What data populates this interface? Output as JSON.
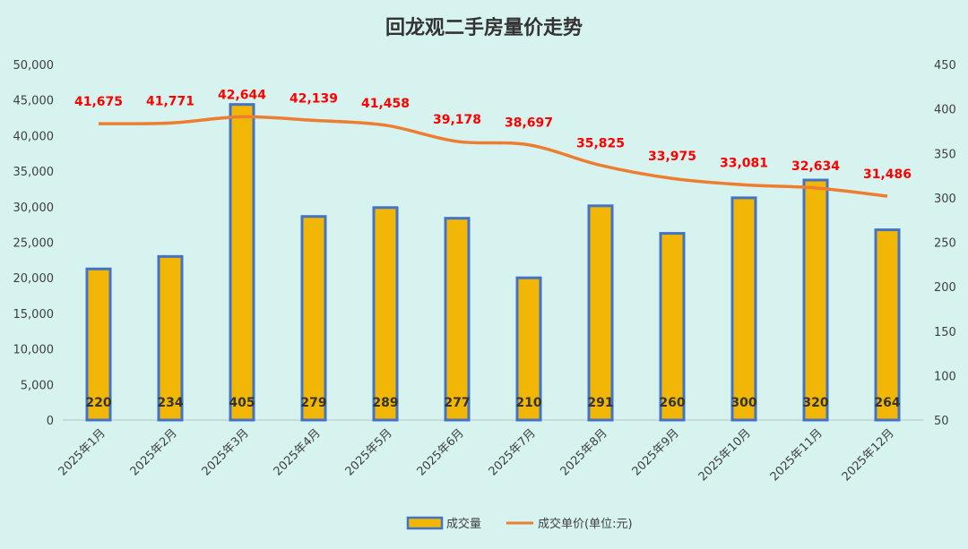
{
  "chart_data": {
    "type": "bar+line",
    "title": "回龙观二手房量价走势",
    "categories": [
      "2025年1月",
      "2025年2月",
      "2025年3月",
      "2025年4月",
      "2025年5月",
      "2025年6月",
      "2025年7月",
      "2025年8月",
      "2025年9月",
      "2025年10月",
      "2025年11月",
      "2025年12月"
    ],
    "series": [
      {
        "name": "成交量",
        "type": "bar",
        "axis": "right",
        "values": [
          220,
          234,
          405,
          279,
          289,
          277,
          210,
          291,
          260,
          300,
          320,
          264
        ],
        "labels": [
          "220",
          "234",
          "405",
          "279",
          "289",
          "277",
          "210",
          "291",
          "260",
          "300",
          "320",
          "264"
        ],
        "color": "#f2b705",
        "border": "#4472c4"
      },
      {
        "name": "成交单价(单位:元)",
        "type": "line",
        "axis": "left",
        "values": [
          41675,
          41771,
          42644,
          42139,
          41458,
          39178,
          38697,
          35825,
          33975,
          33081,
          32634,
          31486
        ],
        "labels": [
          "41,675",
          "41,771",
          "42,644",
          "42,139",
          "41,458",
          "39,178",
          "38,697",
          "35,825",
          "33,975",
          "33,081",
          "32,634",
          "31,486"
        ],
        "color": "#ed7d31",
        "label_color": "#ff0000"
      }
    ],
    "left_axis": {
      "min": 0,
      "max": 50000,
      "ticks": [
        "0",
        "5,000",
        "10,000",
        "15,000",
        "20,000",
        "25,000",
        "30,000",
        "35,000",
        "40,000",
        "45,000",
        "50,000"
      ]
    },
    "right_axis": {
      "min": 50,
      "max": 450,
      "ticks": [
        "50",
        "100",
        "150",
        "200",
        "250",
        "300",
        "350",
        "400",
        "450"
      ]
    },
    "legend_position": "bottom",
    "grid": false
  }
}
